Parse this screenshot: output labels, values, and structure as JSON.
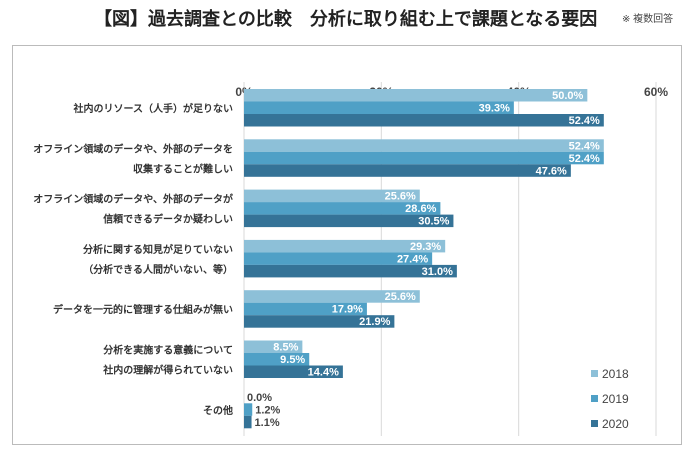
{
  "title": "【図】過去調査との比較　分析に取り組む上で課題となる要因",
  "note": "※ 複数回答",
  "chart_data": {
    "type": "bar",
    "orientation": "horizontal",
    "title": "【図】過去調査との比較　分析に取り組む上で課題となる要因",
    "categories": [
      [
        "社内のリソース（人手）が足りない"
      ],
      [
        "オフライン領域のデータや、外部のデータを",
        "収集することが難しい"
      ],
      [
        "オフライン領域のデータや、外部のデータが",
        "信頼できるデータか疑わしい"
      ],
      [
        "分析に関する知見が足りていない",
        "（分析できる人間がいない、等）"
      ],
      [
        "データを一元的に管理する仕組みが無い"
      ],
      [
        "分析を実施する意義について",
        "社内の理解が得られていない"
      ],
      [
        "その他"
      ]
    ],
    "series": [
      {
        "name": "2018",
        "color": "#8dc0d8",
        "values": [
          50.0,
          52.4,
          25.6,
          29.3,
          25.6,
          8.5,
          0.0
        ]
      },
      {
        "name": "2019",
        "color": "#4fa0c6",
        "values": [
          39.3,
          52.4,
          28.6,
          27.4,
          17.9,
          9.5,
          1.2
        ]
      },
      {
        "name": "2020",
        "color": "#357397",
        "values": [
          52.4,
          47.6,
          30.5,
          31.0,
          21.9,
          14.4,
          1.1
        ]
      }
    ],
    "xlim": [
      0,
      60
    ],
    "xticks": [
      "0%",
      "20%",
      "40%",
      "60%"
    ],
    "tick_values": [
      0,
      20,
      40,
      60
    ],
    "axis_position": "top",
    "grid": true,
    "legend": "bottom-right",
    "value_format": "0.0%"
  }
}
